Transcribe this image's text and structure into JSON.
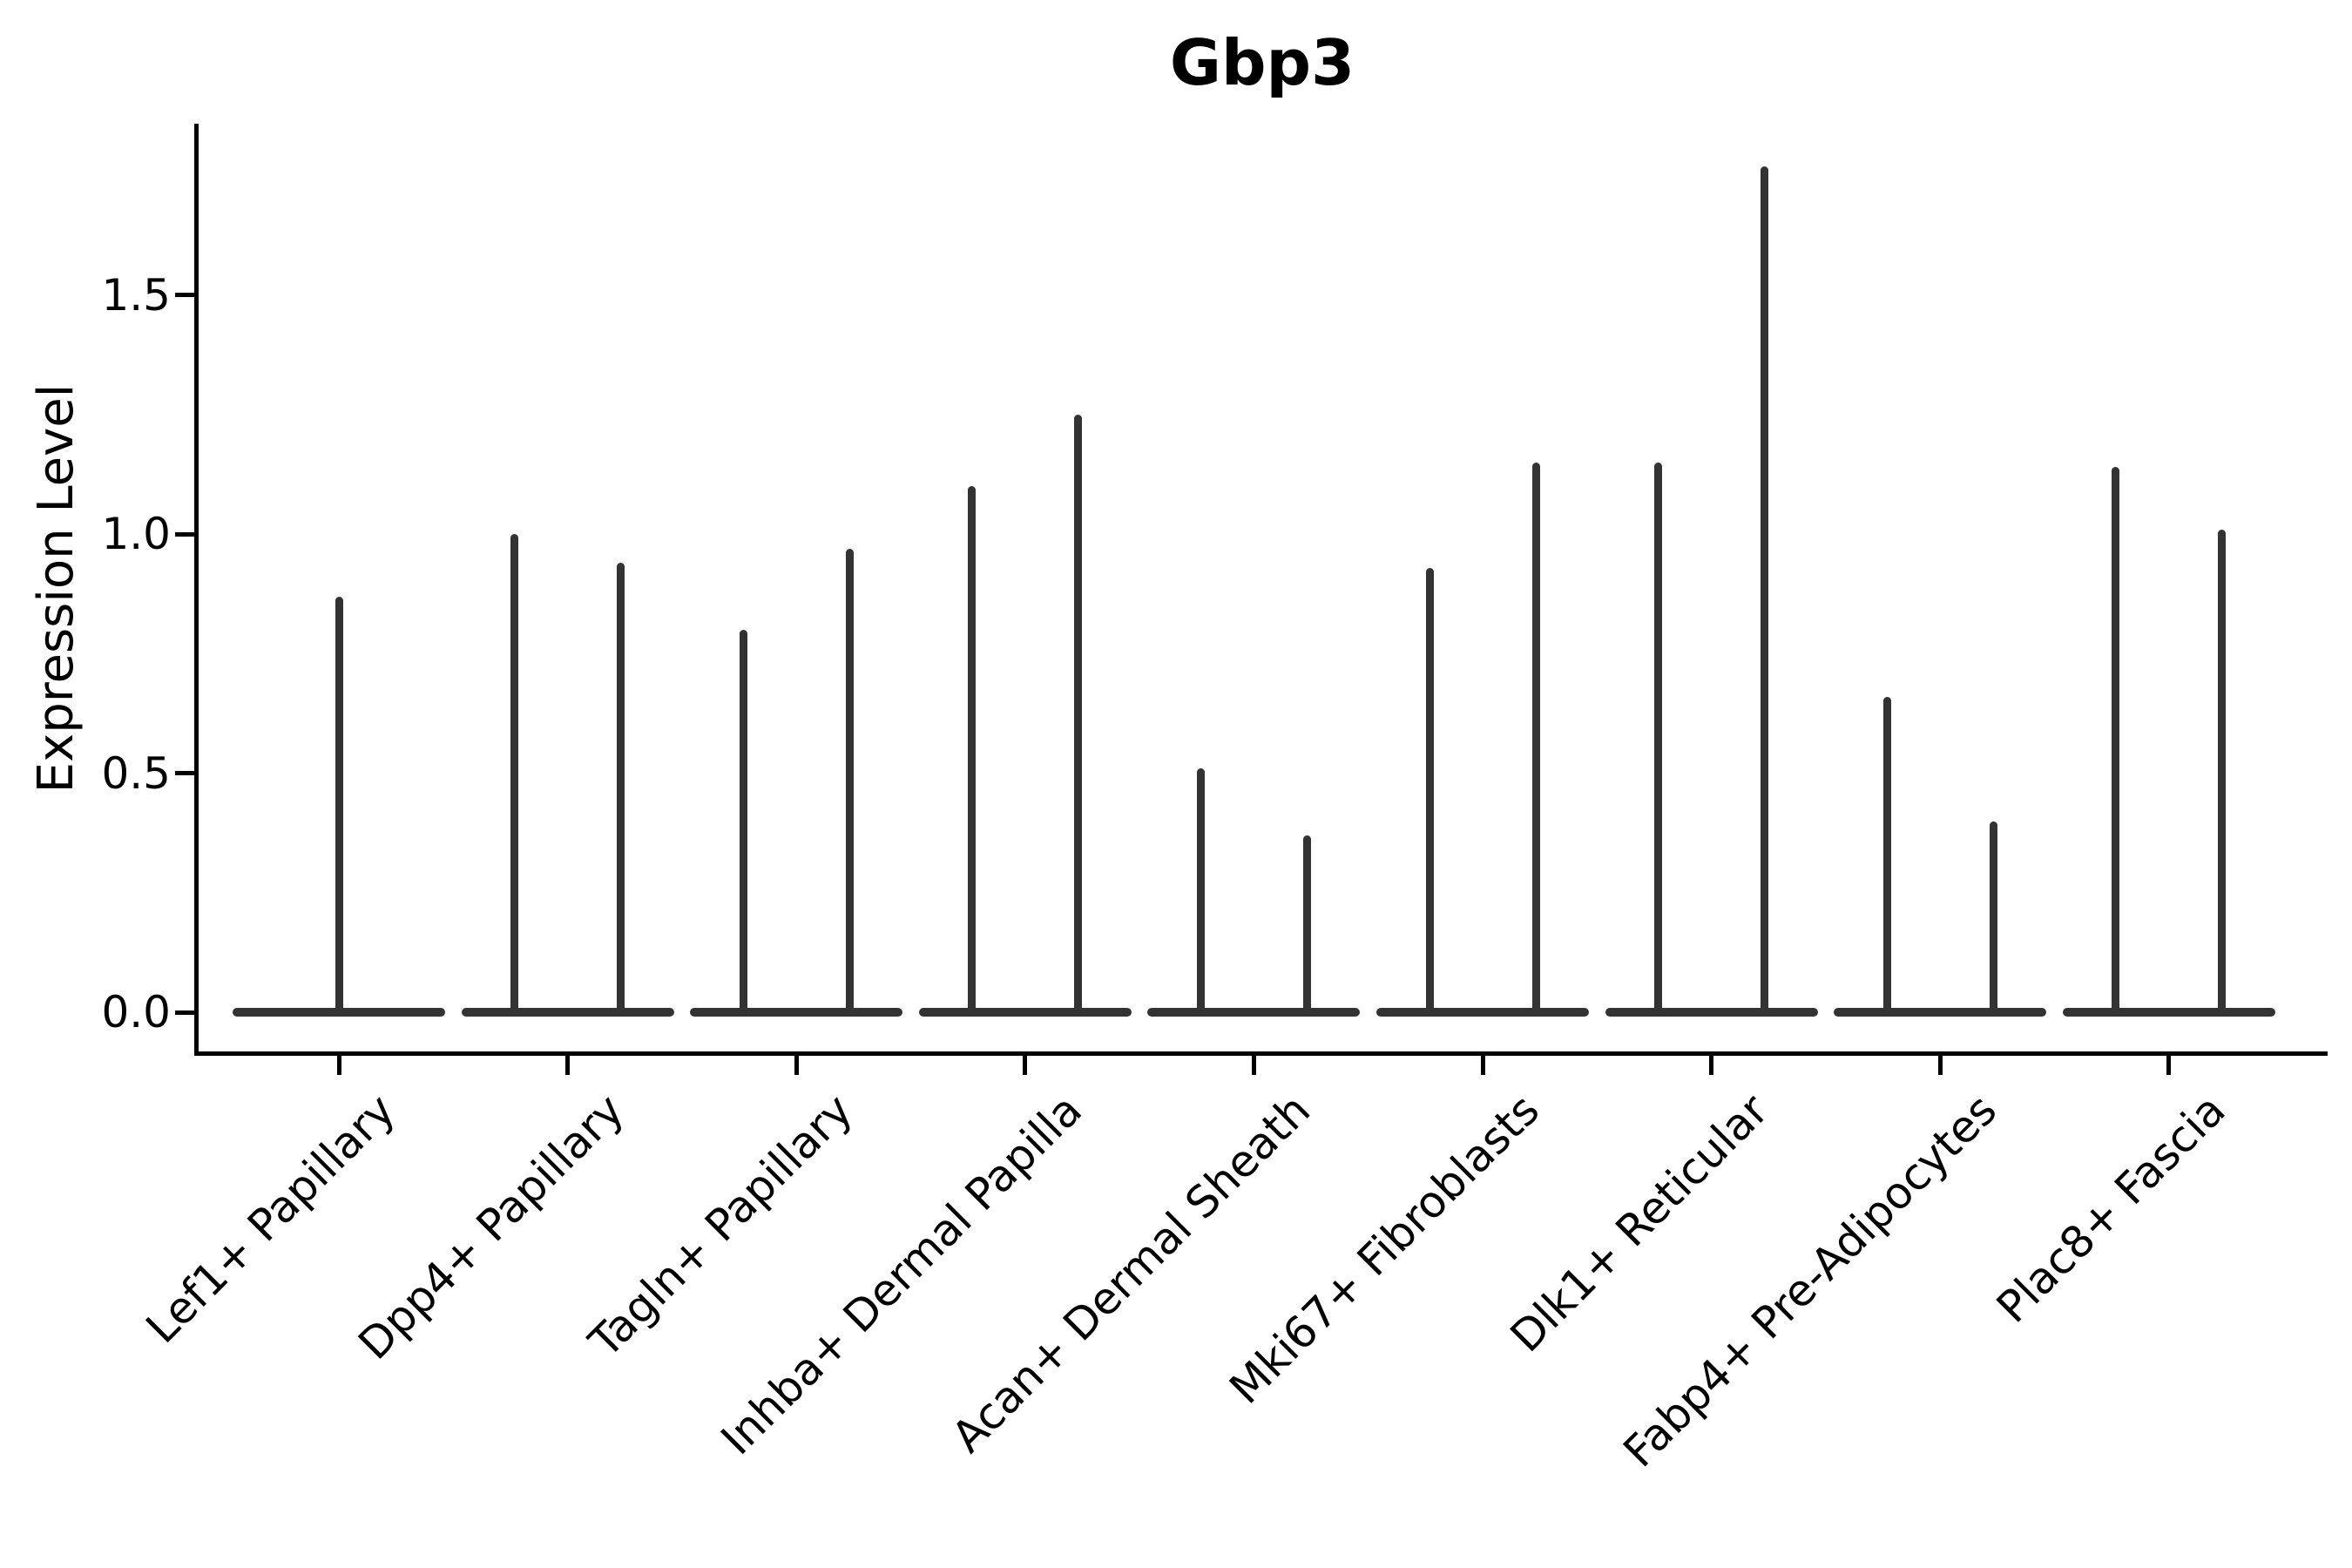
{
  "title": "Gbp3",
  "y_axis": {
    "label": "Expression Level"
  },
  "chart_data": {
    "type": "violin",
    "title": "Gbp3",
    "xlabel": "",
    "ylabel": "Expression Level",
    "ylim": [
      -0.09,
      1.86
    ],
    "yticks": [
      0.0,
      0.5,
      1.0,
      1.5
    ],
    "ytick_labels": [
      "0.0",
      "0.5",
      "1.0",
      "1.5"
    ],
    "grid": false,
    "legend": "none",
    "x_tick_rotation": 45,
    "violin_color": "#333333",
    "axis_color": "#000000",
    "shape_note": "each violin is collapsed to a thin vertical spike rising from a wide flat base at expression 0; peaks = max expression per violin; categories 2-9 contain two side-by-side violins, category 1 a single centered violin",
    "categories": [
      "Lef1+ Papillary",
      "Dpp4+ Papillary",
      "Tagln+ Papillary",
      "Inhba+ Dermal Papilla",
      "Acan+ Dermal Sheath",
      "Mki67+ Fibroblasts",
      "Dlk1+ Reticular",
      "Fabp4+ Pre-Adipocytes",
      "Plac8+ Fascia"
    ],
    "violins": [
      {
        "category": "Lef1+ Papillary",
        "peaks": [
          0.87
        ]
      },
      {
        "category": "Dpp4+ Papillary",
        "peaks": [
          1.0,
          0.94
        ]
      },
      {
        "category": "Tagln+ Papillary",
        "peaks": [
          0.8,
          0.97
        ]
      },
      {
        "category": "Inhba+ Dermal Papilla",
        "peaks": [
          1.1,
          1.25
        ]
      },
      {
        "category": "Acan+ Dermal Sheath",
        "peaks": [
          0.51,
          0.37
        ]
      },
      {
        "category": "Mki67+ Fibroblasts",
        "peaks": [
          0.93,
          1.15
        ]
      },
      {
        "category": "Dlk1+ Reticular",
        "peaks": [
          1.15,
          1.77
        ]
      },
      {
        "category": "Fabp4+ Pre-Adipocytes",
        "peaks": [
          0.66,
          0.4
        ]
      },
      {
        "category": "Plac8+ Fascia",
        "peaks": [
          1.14,
          1.01
        ]
      }
    ]
  }
}
